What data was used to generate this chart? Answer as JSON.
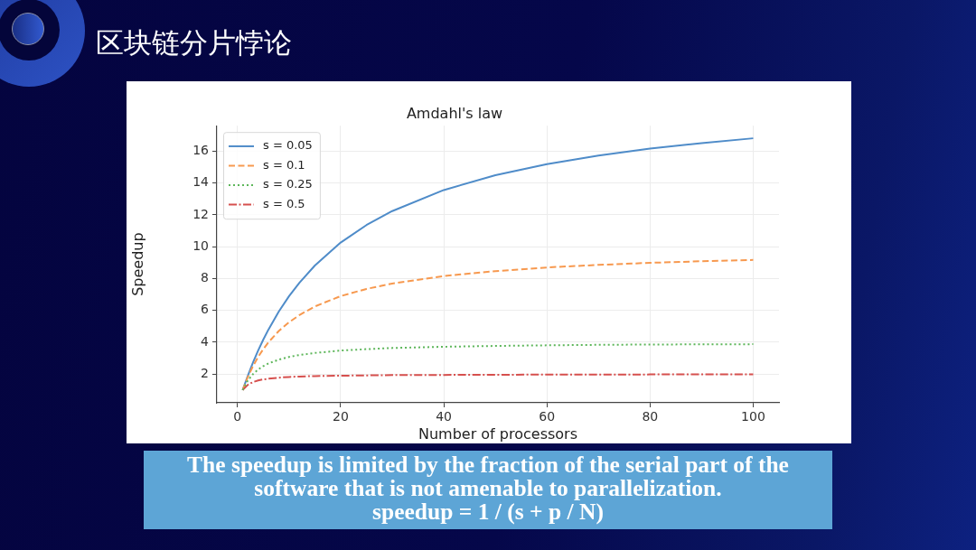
{
  "chart_data": {
    "type": "line",
    "title": "Amdahl's law",
    "xlabel": "Number of processors",
    "ylabel": "Speedup",
    "x": [
      1,
      2,
      3,
      4,
      5,
      6,
      8,
      10,
      12,
      15,
      20,
      25,
      30,
      40,
      50,
      60,
      70,
      80,
      90,
      100
    ],
    "series": [
      {
        "name": "s = 0.05",
        "color": "#4f8cc9",
        "line_style": "solid",
        "values": [
          1,
          1.9,
          2.73,
          3.48,
          4.17,
          4.8,
          5.93,
          6.9,
          7.74,
          8.82,
          10.26,
          11.36,
          12.24,
          13.56,
          14.49,
          15.19,
          15.73,
          16.16,
          16.51,
          16.81
        ]
      },
      {
        "name": "s = 0.1",
        "color": "#f7994f",
        "line_style": "dashed",
        "values": [
          1,
          1.82,
          2.5,
          3.08,
          3.57,
          4,
          4.71,
          5.26,
          5.71,
          6.25,
          6.9,
          7.35,
          7.69,
          8.16,
          8.47,
          8.7,
          8.86,
          8.99,
          9.09,
          9.17
        ]
      },
      {
        "name": "s = 0.25",
        "color": "#5db65a",
        "line_style": "dotted",
        "values": [
          1,
          1.6,
          2,
          2.29,
          2.5,
          2.67,
          2.91,
          3.08,
          3.2,
          3.33,
          3.48,
          3.57,
          3.64,
          3.72,
          3.77,
          3.81,
          3.84,
          3.86,
          3.87,
          3.88
        ]
      },
      {
        "name": "s = 0.5",
        "color": "#d6504e",
        "line_style": "dashdot",
        "values": [
          1,
          1.33,
          1.5,
          1.6,
          1.67,
          1.71,
          1.78,
          1.82,
          1.85,
          1.88,
          1.9,
          1.92,
          1.94,
          1.95,
          1.96,
          1.97,
          1.97,
          1.98,
          1.98,
          1.98
        ]
      }
    ],
    "xlim": [
      -4,
      105
    ],
    "ylim": [
      0.2,
      17.6
    ],
    "xticks": [
      0,
      20,
      40,
      60,
      80,
      100
    ],
    "yticks": [
      2,
      4,
      6,
      8,
      10,
      12,
      14,
      16
    ],
    "grid": true,
    "legend": "top left",
    "marker": "none",
    "annotations": [
      "区块链分片悖论",
      "The speedup is limited by the fraction of the serial part of the software that is not amenable to parallelization.",
      "speedup = 1 / (s + p / N)"
    ]
  }
}
